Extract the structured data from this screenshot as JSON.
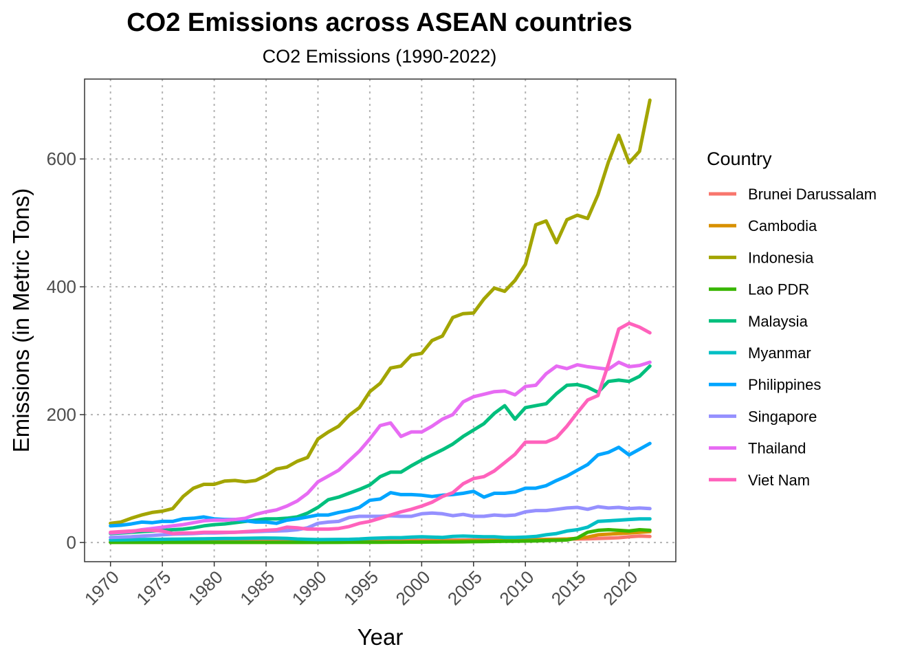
{
  "chart_data": {
    "type": "line",
    "title": "CO2 Emissions across ASEAN countries",
    "subtitle": "CO2 Emissions (1990-2022)",
    "xlabel": "Year",
    "ylabel": "Emissions (in Metric Tons)",
    "xlim": [
      1967.5,
      2024.5
    ],
    "ylim": [
      -30,
      725
    ],
    "x_ticks": [
      1970,
      1975,
      1980,
      1985,
      1990,
      1995,
      2000,
      2005,
      2010,
      2015,
      2020
    ],
    "y_ticks": [
      0,
      200,
      400,
      600
    ],
    "grid": true,
    "legend_title": "Country",
    "legend_position": "right",
    "x": [
      1970,
      1971,
      1972,
      1973,
      1974,
      1975,
      1976,
      1977,
      1978,
      1979,
      1980,
      1981,
      1982,
      1983,
      1984,
      1985,
      1986,
      1987,
      1988,
      1989,
      1990,
      1991,
      1992,
      1993,
      1994,
      1995,
      1996,
      1997,
      1998,
      1999,
      2000,
      2001,
      2002,
      2003,
      2004,
      2005,
      2006,
      2007,
      2008,
      2009,
      2010,
      2011,
      2012,
      2013,
      2014,
      2015,
      2016,
      2017,
      2018,
      2019,
      2020,
      2021,
      2022
    ],
    "series": [
      {
        "name": "Brunei Darussalam",
        "color": "#F8766D",
        "values": [
          0.5,
          0.6,
          0.7,
          0.8,
          0.9,
          1,
          1.1,
          1.2,
          1.3,
          1.4,
          1.5,
          1.6,
          1.7,
          1.8,
          1.9,
          2,
          2.1,
          2.2,
          2.3,
          2.4,
          2.5,
          2.6,
          2.7,
          2.8,
          2.9,
          3,
          3.1,
          3.2,
          3.3,
          3.4,
          3.5,
          3.6,
          3.7,
          3.8,
          3.9,
          4,
          4.1,
          4.2,
          4.3,
          4.4,
          4.5,
          4.7,
          4.9,
          5.1,
          5.3,
          5.5,
          5.8,
          6.2,
          6.8,
          7.5,
          9,
          10,
          9.5
        ]
      },
      {
        "name": "Cambodia",
        "color": "#D89000",
        "values": [
          0.3,
          0.3,
          0.3,
          0.3,
          0.3,
          0.3,
          0.3,
          0.3,
          0.3,
          0.3,
          0.3,
          0.3,
          0.3,
          0.3,
          0.3,
          0.3,
          0.3,
          0.3,
          0.3,
          0.3,
          0.4,
          0.5,
          0.6,
          0.7,
          0.8,
          0.9,
          1,
          1.1,
          1.2,
          1.4,
          1.6,
          1.8,
          2,
          2.2,
          2.4,
          2.6,
          2.8,
          3,
          3.2,
          3.4,
          3.6,
          4,
          4.5,
          5,
          5.5,
          6.5,
          8.5,
          12,
          13,
          14,
          15,
          16,
          17
        ]
      },
      {
        "name": "Indonesia",
        "color": "#A3A500",
        "values": [
          30,
          32,
          38,
          43,
          47,
          49,
          53,
          72,
          85,
          91,
          91,
          96,
          97,
          95,
          97,
          105,
          115,
          118,
          127,
          133,
          162,
          173,
          182,
          199,
          211,
          236,
          249,
          273,
          276,
          293,
          296,
          316,
          323,
          352,
          358,
          359,
          381,
          398,
          393,
          410,
          435,
          497,
          503,
          469,
          505,
          512,
          507,
          544,
          595,
          637,
          594,
          612,
          692
        ]
      },
      {
        "name": "Lao PDR",
        "color": "#39B600",
        "values": [
          0.2,
          0.2,
          0.2,
          0.2,
          0.2,
          0.2,
          0.2,
          0.2,
          0.2,
          0.2,
          0.2,
          0.2,
          0.2,
          0.2,
          0.2,
          0.2,
          0.2,
          0.2,
          0.2,
          0.2,
          0.2,
          0.2,
          0.2,
          0.3,
          0.3,
          0.4,
          0.4,
          0.5,
          0.5,
          0.6,
          0.7,
          0.8,
          0.9,
          1,
          1.1,
          1.3,
          1.5,
          1.7,
          1.9,
          2.1,
          2.3,
          2.6,
          3,
          3.5,
          4,
          7,
          16,
          19,
          20,
          19,
          18,
          20,
          19
        ]
      },
      {
        "name": "Malaysia",
        "color": "#00BF7D",
        "values": [
          14,
          15,
          16,
          17,
          18,
          19,
          20,
          21,
          23,
          26,
          28,
          29,
          31,
          33,
          35,
          37,
          37,
          38,
          40,
          46,
          55,
          67,
          71,
          77,
          83,
          90,
          103,
          110,
          110,
          120,
          129,
          137,
          145,
          154,
          166,
          176,
          186,
          202,
          214,
          193,
          211,
          214,
          217,
          233,
          246,
          247,
          243,
          235,
          252,
          254,
          252,
          260,
          276
        ]
      },
      {
        "name": "Myanmar",
        "color": "#00BFC4",
        "values": [
          4,
          4.2,
          4.4,
          4.6,
          4.8,
          5,
          5.2,
          5.4,
          5.6,
          5.8,
          6,
          6.2,
          6.4,
          6.6,
          6.8,
          7,
          6.8,
          6.5,
          5.5,
          5,
          4.5,
          4.6,
          4.8,
          5,
          5.5,
          6.5,
          7,
          7.5,
          7.5,
          8.5,
          9,
          8.5,
          8,
          9.5,
          10,
          9.5,
          9,
          9,
          8,
          8,
          8.5,
          9.5,
          12,
          14,
          18,
          20,
          24,
          33,
          34,
          35,
          36,
          37,
          37
        ]
      },
      {
        "name": "Philippines",
        "color": "#00A5FF",
        "values": [
          26,
          27,
          29,
          32,
          31,
          33,
          33,
          37,
          38,
          40,
          37,
          36,
          36,
          34,
          32,
          32,
          30,
          35,
          37,
          40,
          43,
          43,
          47,
          50,
          55,
          66,
          68,
          78,
          75,
          75,
          74,
          72,
          74,
          75,
          77,
          80,
          71,
          77,
          77,
          79,
          85,
          85,
          89,
          97,
          104,
          113,
          122,
          137,
          141,
          149,
          137,
          146,
          155
        ]
      },
      {
        "name": "Singapore",
        "color": "#9590FF",
        "values": [
          8,
          8.5,
          9,
          10,
          11,
          12,
          13,
          13.5,
          14,
          15,
          15,
          15.5,
          16,
          16.5,
          17,
          17.5,
          18,
          18.5,
          20,
          23,
          30,
          32,
          33,
          39,
          41,
          41,
          41,
          42,
          41,
          41,
          45,
          46,
          45,
          42,
          44,
          41,
          41,
          43,
          42,
          43,
          48,
          50,
          50,
          52,
          54,
          55,
          52,
          56,
          54,
          55,
          53,
          54,
          53
        ]
      },
      {
        "name": "Thailand",
        "color": "#E76BF3",
        "values": [
          15,
          16,
          17,
          20,
          22,
          24,
          26,
          28,
          31,
          34,
          35,
          35,
          36,
          38,
          44,
          48,
          51,
          57,
          65,
          77,
          95,
          104,
          113,
          128,
          143,
          162,
          183,
          187,
          166,
          173,
          173,
          182,
          193,
          200,
          220,
          228,
          232,
          236,
          237,
          231,
          244,
          246,
          264,
          276,
          272,
          278,
          275,
          273,
          271,
          282,
          275,
          277,
          282
        ]
      },
      {
        "name": "Viet Nam",
        "color": "#FF62BC",
        "values": [
          16,
          17,
          18,
          19,
          19,
          18,
          14,
          15,
          15,
          16,
          16,
          16,
          16,
          17,
          18,
          19,
          20,
          24,
          23,
          21,
          21,
          21,
          22,
          25,
          30,
          33,
          38,
          43,
          48,
          52,
          57,
          63,
          72,
          78,
          92,
          100,
          103,
          112,
          125,
          138,
          157,
          157,
          157,
          164,
          182,
          203,
          223,
          230,
          279,
          334,
          343,
          337,
          328
        ]
      }
    ]
  }
}
